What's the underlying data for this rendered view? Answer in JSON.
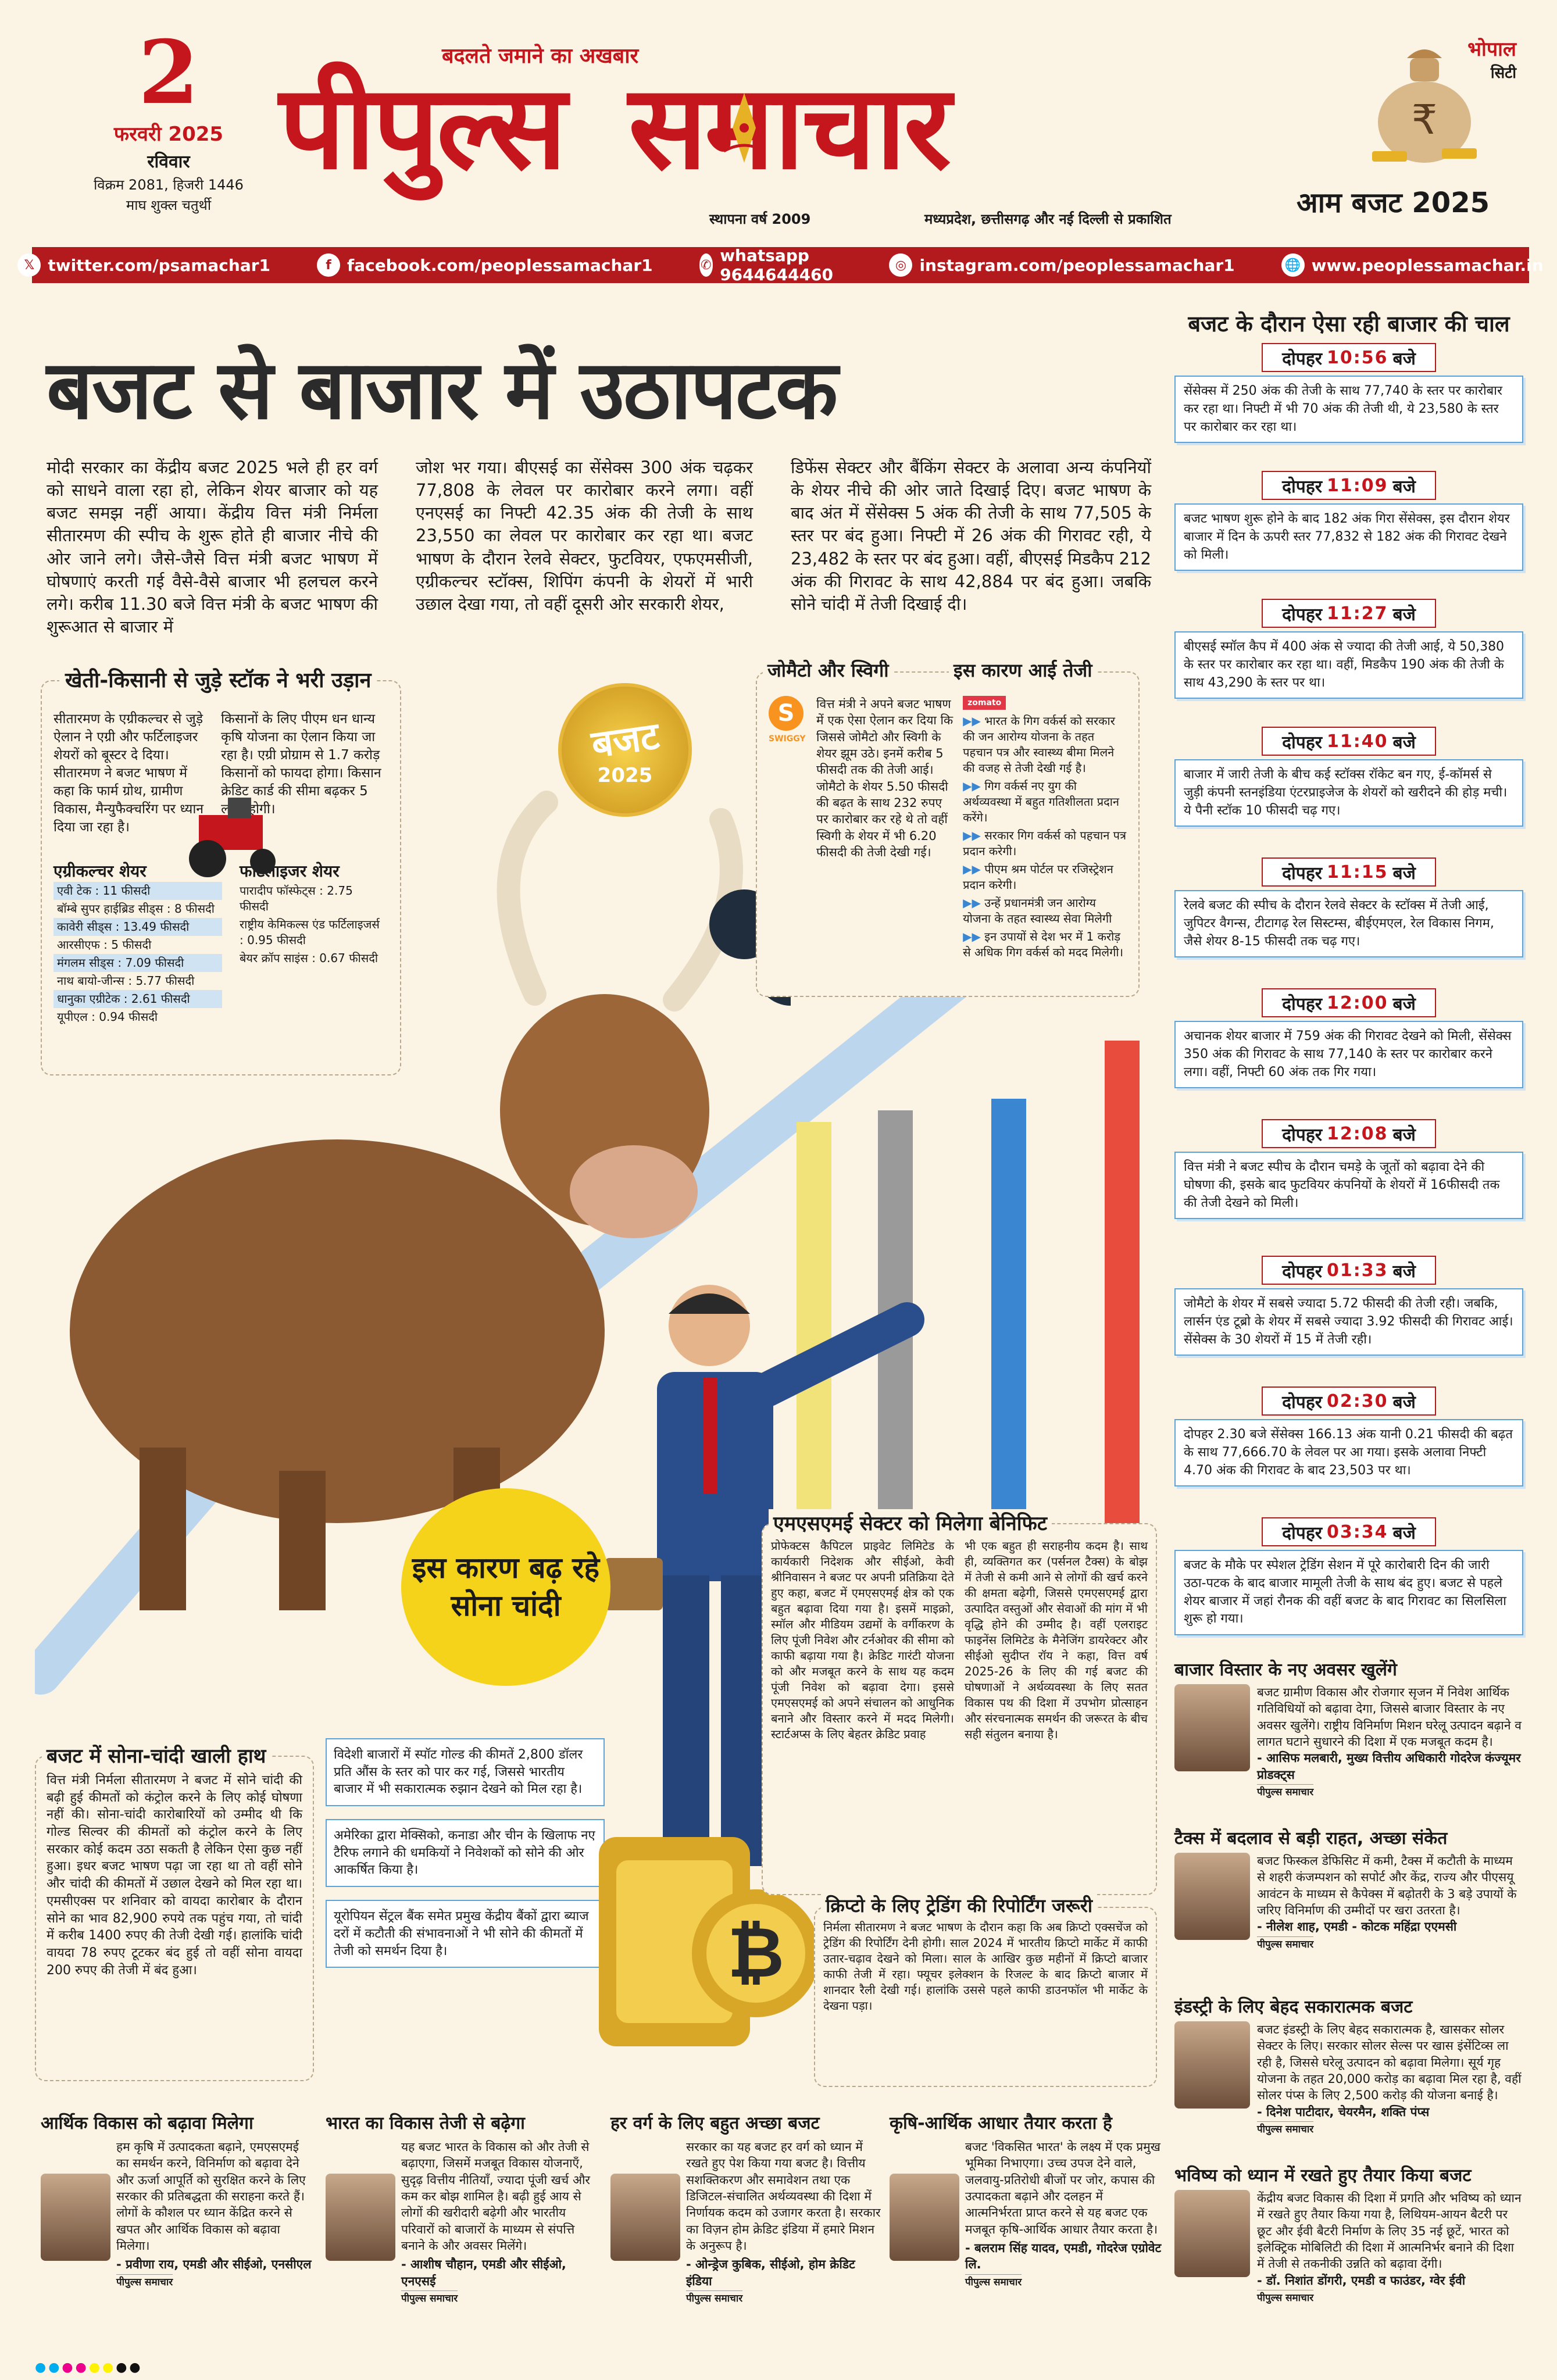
{
  "masthead": {
    "day": "2",
    "date_line": "फरवरी 2025",
    "weekday": "रविवार",
    "samvat": "विक्रम 2081, हिजरी 1446",
    "tithi": "माघ शुक्ल चतुर्थी",
    "tagline": "बदलते जमाने का अखबार",
    "logo_left": "पीपुल्स",
    "logo_right": "समाचार",
    "established": "स्थापना वर्ष 2009",
    "published": "मध्यप्रदेश, छत्तीसगढ़ और नई दिल्ली से प्रकाशित",
    "city": "भोपाल",
    "city_sub": "सिटी",
    "section": "आम बजट 2025"
  },
  "social": {
    "twitter": "twitter.com/psamachar1",
    "facebook": "facebook.com/peoplessamachar1",
    "whatsapp": "whatsapp 9644644460",
    "instagram": "instagram.com/peoplessamachar1",
    "web": "www.peoplessamachar.in"
  },
  "headline": "बजट से बाजार में उठापटक",
  "lead": {
    "c1": "मोदी सरकार का केंद्रीय बजट 2025 भले ही हर वर्ग को साधने वाला रहा हो, लेकिन शेयर बाजार को यह बजट समझ नहीं आया। केंद्रीय वित्त मंत्री निर्मला सीतारमण की स्पीच के शुरू होते ही बाजार नीचे की ओर जाने लगे। जैसे-जैसे वित्त मंत्री बजट भाषण में घोषणाएं करती गई वैसे-वैसे बाजार भी हलचल करने लगे। करीब 11.30 बजे वित्त मंत्री के बजट भाषण की शुरूआत से बाजार में",
    "c2": "जोश भर गया। बीएसई का सेंसेक्स 300 अंक चढ़कर 77,808 के लेवल पर कारोबार करने लगा। वहीं एनएसई का निफ्टी 42.35 अंक की तेजी के साथ 23,550 का लेवल पर कारोबार कर रहा था। बजट भाषण के दौरान रेलवे सेक्टर, फुटवियर, एफएमसीजी, एग्रीकल्चर स्टॉक्स, शिपिंग कंपनी के शेयरों में भारी उछाल देखा गया, तो वहीं दूसरी ओर सरकारी शेयर,",
    "c3": "डिफेंस सेक्टर और बैंकिंग सेक्टर के अलावा अन्य कंपनियों के शेयर नीचे की ओर जाते दिखाई दिए। बजट भाषण के बाद अंत में सेंसेक्स 5 अंक की तेजी के साथ 77,505 के स्तर पर बंद हुआ। निफ्टी में 26 अंक की गिरावट रही, ये 23,482 के स्तर पर बंद हुआ। वहीं, बीएसई मिडकैप 212 अंक की गिरावट के साथ 42,884 पर बंद हुआ। जबकि सोने चांदी में तेजी दिखाई दी।"
  },
  "agri": {
    "title": "खेती-किसानी से जुड़े स्टॉक ने भरी उड़ान",
    "p1": "सीतारमण के एग्रीकल्चर से जुड़े ऐलान ने एग्री और फर्टिलाइजर शेयरों को बूस्टर दे दिया। सीतारमण ने बजट भाषण में कहा कि फार्म ग्रोथ, ग्रामीण विकास, मैन्युफैक्चरिंग पर ध्यान दिया जा रहा है।",
    "p2": "किसानों के लिए पीएम धन धान्य कृषि योजना का ऐलान किया जा रहा है। एग्री प्रोग्राम से 1.7 करोड़ किसानों को फायदा होगा। किसान क्रेडिट कार्ड की सीमा बढ़कर 5 लाख होगी।",
    "h_agri": "एग्रीकल्चर शेयर",
    "agri_list": [
      "एवी टेक : 11 फीसदी",
      "बॉम्बे सुपर हाईब्रिड सीड्स : 8 फीसदी",
      "कावेरी सीड्स : 13.49 फीसदी",
      "आरसीएफ : 5 फीसदी",
      "मंगलम सीड्स : 7.09 फीसदी",
      "नाथ बायो-जीन्स : 5.77 फीसदी",
      "धानुका एग्रीटेक : 2.61 फीसदी",
      "यूपीएल : 0.94 फीसदी"
    ],
    "h_fert": "फर्टिलाइजर शेयर",
    "fert_list": [
      "पारादीप फॉस्फेट्स : 2.75 फीसदी",
      "राष्ट्रीय केमिकल्स एंड फर्टिलाइजर्स : 0.95 फीसदी",
      "बेयर क्रॉप साइंस : 0.67 फीसदी"
    ]
  },
  "stamp": {
    "top": "बजट",
    "bottom": "2025"
  },
  "zomato": {
    "title": "जोमैटो और स्विगी",
    "body": "वित्त मंत्री ने अपने बजट भाषण में एक ऐसा ऐलान कर दिया कि जिससे जोमैटो और स्विगी के शेयर झूम उठे। इनमें करीब 5 फीसदी तक की तेजी आई। जोमैटो के शेयर 5.50 फीसदी की बढ़त के साथ 232 रुपए पर कारोबार कर रहे थे तो वहीं स्विगी के शेयर में भी 6.20 फीसदी की तेजी देखी गई।",
    "swiggy": "SWIGGY",
    "zomato_logo": "zomato"
  },
  "reason": {
    "title": "इस कारण आई तेजी",
    "items": [
      "भारत के गिग वर्कर्स को सरकार की जन आरोग्य योजना के तहत पहचान पत्र और स्वास्थ्य बीमा मिलने की वजह से तेजी देखी गई है।",
      "गिग वर्कर्स नए युग की अर्थव्यवस्था में बहुत गतिशीलता प्रदान करेंगे।",
      "सरकार गिग वर्कर्स को पहचान पत्र प्रदान करेगी।",
      "पीएम श्रम पोर्टल पर रजिस्ट्रेशन प्रदान करेगी।",
      "उन्हें प्रधानमंत्री जन आरोग्य योजना के तहत स्वास्थ्य सेवा मिलेगी",
      "इन उपायों से देश भर में 1 करोड़ से अधिक गिग वर्कर्स को मदद मिलेगी।"
    ]
  },
  "gold_bubble": "इस कारण बढ़ रहे सोना चांदी",
  "gold": {
    "title": "बजट में सोना-चांदी खाली हाथ",
    "body": "वित्त मंत्री निर्मला सीतारमण ने बजट में सोने चांदी की बढ़ी हुई कीमतों को कंट्रोल करने के लिए कोई घोषणा नहीं की। सोना-चांदी कारोबारियों को उम्मीद थी कि गोल्ड सिल्वर की कीमतों को कंट्रोल करने के लिए सरकार कोई कदम उठा सकती है लेकिन ऐसा कुछ नहीं हुआ। इधर बजट भाषण पढ़ा जा रहा था तो वहीं सोने और चांदी की कीमतों में उछाल देखने को मिल रहा था। एमसीएक्स पर शनिवार को वायदा कारोबार के दौरान सोने का भाव 82,900 रुपये तक पहुंच गया, तो चांदी में करीब 1400 रुपए की तेजी देखी गई। हालांकि चांदी वायदा 78 रुपए टूटकर बंद हुई तो वहीं सोना वायदा 200 रुपए की तेजी में बंद हुआ।",
    "notes": [
      "विदेशी बाजारों में स्पॉट गोल्ड की कीमतें 2,800 डॉलर प्रति औंस के स्तर को पार कर गई, जिससे भारतीय बाजार में भी सकारात्मक रुझान देखने को मिल रहा है।",
      "अमेरिका द्वारा मेक्सिको, कनाडा और चीन के खिलाफ नए टैरिफ लगाने की धमकियों ने निवेशकों को सोने की ओर आकर्षित किया है।",
      "यूरोपियन सेंट्रल बैंक समेत प्रमुख केंद्रीय बैंकों द्वारा ब्याज दरों में कटौती की संभावनाओं ने भी सोने की कीमतों में तेजी को समर्थन दिया है।"
    ]
  },
  "msme": {
    "title": "एमएसएमई सेक्टर को मिलेगा बेनिफिट",
    "c1": "प्रोफेक्टस कैपिटल प्राइवेट लिमिटेड के कार्यकारी निदेशक और सीईओ, केवी श्रीनिवासन ने बजट पर अपनी प्रतिक्रिया देते हुए कहा, बजट में एमएसएमई क्षेत्र को एक बहुत बढ़ावा दिया गया है। इसमें माइक्रो, स्मॉल और मीडियम उद्यमों के वर्गीकरण के लिए पूंजी निवेश और टर्नओवर की सीमा को काफी बढ़ाया गया है। क्रेडिट गारंटी योजना को और मजबूत करने के साथ यह कदम पूंजी निवेश को बढ़ावा देगा। इससे एमएसएमई को अपने संचालन को आधुनिक बनाने और विस्तार करने में मदद मिलेगी। स्टार्टअप्स के लिए बेहतर क्रेडिट प्रवाह",
    "c2": "भी एक बहुत ही सराहनीय कदम है। साथ ही, व्यक्तिगत कर (पर्सनल टैक्स) के बोझ में तेजी से कमी आने से लोगों की खर्च करने की क्षमता बढ़ेगी, जिससे एमएसएमई द्वारा उत्पादित वस्तुओं और सेवाओं की मांग में भी वृद्धि होने की उम्मीद है। वहीं एलराइट फाइनेंस लिमिटेड के मैनेजिंग डायरेक्टर और सीईओ सुदीप्त रॉय ने कहा, वित्त वर्ष 2025-26 के लिए की गई बजट की घोषणाओं ने अर्थव्यवस्था के लिए सतत विकास पथ की दिशा में उपभोग प्रोत्साहन और संरचनात्मक समर्थन की जरूरत के बीच सही संतुलन बनाया है।"
  },
  "crypto": {
    "title": "क्रिप्टो के लिए ट्रेडिंग की रिपोर्टिंग जरूरी",
    "body": "निर्मला सीतारमण ने बजट भाषण के दौरान कहा कि अब क्रिप्टो एक्सचेंज को ट्रेडिंग की रिपोर्टिंग देनी होगी। साल 2024 में भारतीय क्रिप्टो मार्केट में काफी उतार-चढ़ाव देखने को मिला। साल के आखिर कुछ महीनों में क्रिप्टो बाजार काफी तेजी में रहा। फ्यूचर इलेक्शन के रिजल्ट के बाद क्रिप्टो बाजार में शानदार रैली देखी गई। हालांकि उससे पहले काफी डाउनफॉल भी मार्केट के देखना पड़ा।"
  },
  "sidebar": {
    "head": "बजट के दौरान ऐसा रही बाजार की चाल",
    "pre": "दोपहर",
    "post": "बजे",
    "times": [
      {
        "t": "10:56",
        "body": "सेंसेक्स में 250 अंक की तेजी के साथ 77,740 के स्तर पर कारोबार कर रहा था। निफ्टी में भी 70 अंक की तेजी थी, ये 23,580 के स्तर पर कारोबार कर रहा था।"
      },
      {
        "t": "11:09",
        "body": "बजट भाषण शुरू होने के बाद 182 अंक गिरा सेंसेक्स, इस दौरान शेयर बाजार में दिन के ऊपरी स्तर 77,832 से 182 अंक की गिरावट देखने को मिली।"
      },
      {
        "t": "11:27",
        "body": "बीएसई स्मॉल कैप में 400 अंक से ज्यादा की तेजी आई, ये 50,380 के स्तर पर कारोबार कर रहा था। वहीं, मिडकैप 190 अंक की तेजी के साथ 43,290 के स्तर पर था।"
      },
      {
        "t": "11:40",
        "body": "बाजार में जारी तेजी के बीच कई स्टॉक्स रॉकेट बन गए, ई-कॉमर्स से जुड़ी कंपनी स्तनइंडिया एंटरप्राइजेज के शेयरों को खरीदने की होड़ मची। ये पैनी स्टॉक 10 फीसदी चढ़ गए।"
      },
      {
        "t": "11:15",
        "body": "रेलवे बजट की स्पीच के दौरान रेलवे सेक्टर के स्टॉक्स में तेजी आई, जुपिटर वैगन्स, टीटागढ़ रेल सिस्टम्स, बीईएमएल, रेल विकास निगम, जैसे शेयर 8-15 फीसदी तक चढ़ गए।"
      },
      {
        "t": "12:00",
        "body": "अचानक शेयर बाजार में 759 अंक की गिरावट देखने को मिली, सेंसेक्स 350 अंक की गिरावट के साथ 77,140 के स्तर पर कारोबार करने लगा। वहीं, निफ्टी 60 अंक तक गिर गया।"
      },
      {
        "t": "12:08",
        "body": "वित्त मंत्री ने बजट स्पीच के दौरान चमड़े के जूतों को बढ़ावा देने की घोषणा की, इसके बाद फुटवियर कंपनियों के शेयरों में 16फीसदी तक की तेजी देखने को मिली।"
      },
      {
        "t": "01:33",
        "body": "जोमैटो के शेयर में सबसे ज्यादा 5.72 फीसदी की तेजी रही। जबकि, लार्सन एंड टूब्रो के शेयर में सबसे ज्यादा 3.92 फीसदी की गिरावट आई। सेंसेक्स के 30 शेयरों में 15 में तेजी रही।"
      },
      {
        "t": "02:30",
        "body": "दोपहर 2.30 बजे सेंसेक्स 166.13 अंक यानी 0.21 फीसदी की बढ़त के साथ 77,666.70 के लेवल पर आ गया। इसके अलावा निफ्टी 4.70 अंक की गिरावट के बाद 23,503 पर था।"
      },
      {
        "t": "03:34",
        "body": "बजट के मौके पर स्पेशल ट्रेडिंग सेशन में पूरे कारोबारी दिन की जारी उठा-पटक के बाद बाजार मामूली तेजी के साथ बंद हुए। बजट से पहले शेयर बाजार में जहां रौनक की वहीं बजट के बाद गिरावट का सिलसिला शुरू हो गया।"
      }
    ]
  },
  "op_right": [
    {
      "title": "बाजार विस्तार के नए अवसर खुलेंगे",
      "body": "बजट ग्रामीण विकास और रोजगार सृजन में निवेश आर्थिक गतिविधियों को बढ़ावा देगा, जिससे बाजार विस्तार के नए अवसर खुलेंगे। राष्ट्रीय विनिर्माण मिशन घरेलू उत्पादन बढ़ाने व लागत घटाने सुधारने की दिशा में एक मजबूत कदम है।",
      "who": "- आसिफ मलबारी, मुख्य वित्तीय अधिकारी गोदरेज कंज्यूमर प्रोडक्ट्स"
    },
    {
      "title": "टैक्स में बदलाव से बड़ी राहत, अच्छा संकेत",
      "body": "बजट फिस्कल डेफिसिट में कमी, टैक्स में कटौती के माध्यम से शहरी कंजम्पशन को सपोर्ट और केंद्र, राज्य और पीएसयू आवंटन के माध्यम से कैपेक्स में बढ़ोतरी के 3 बड़े उपायों के जरिए विनिर्माण की उम्मीदों पर खरा उतरता है।",
      "who": "- नीलेश शाह, एमडी - कोटक महिंद्रा एएमसी"
    },
    {
      "title": "इंडस्ट्री के लिए बेहद सकारात्मक बजट",
      "body": "बजट इंडस्ट्री के लिए बेहद सकारात्मक है, खासकर सोलर सेक्टर के लिए। सरकार सोलर सेल्स पर खास इंसेंटिव्स ला रही है, जिससे घरेलू उत्पादन को बढ़ावा मिलेगा। सूर्य गृह योजना के तहत 20,000 करोड़ का बढ़ावा मिल रहा है, वहीं सोलर पंप्स के लिए 2,500 करोड़ की योजना बनाई है।",
      "who": "- दिनेश पाटीदार, चेयरमैन, शक्ति पंप्स"
    },
    {
      "title": "भविष्य को ध्यान में रखते हुए तैयार किया बजट",
      "body": "केंद्रीय बजट विकास की दिशा में प्रगति और भविष्य को ध्यान में रखते हुए तैयार किया गया है, लिथियम-आयन बैटरी पर छूट और ईवी बैटरी निर्माण के लिए 35 नई छूटें, भारत को इलेक्ट्रिक मोबिलिटी की दिशा में आत्मनिर्भर बनाने की दिशा में तेजी से तकनीकी उन्नति को बढ़ावा देंगी।",
      "who": "- डॉ. निशांत डोंगरी, एमडी व फाउंडर, ग्वेर ईवी"
    }
  ],
  "op_bottom": [
    {
      "title": "आर्थिक विकास को बढ़ावा मिलेगा",
      "body": "हम कृषि में उत्पादकता बढ़ाने, एमएसएमई का समर्थन करने, विनिर्माण को बढ़ावा देने और ऊर्जा आपूर्ति को सुरक्षित करने के लिए सरकार की प्रतिबद्धता की सराहना करते हैं। लोगों के कौशल पर ध्यान केंद्रित करने से खपत और आर्थिक विकास को बढ़ावा मिलेगा।",
      "who": "- प्रवीणा राय, एमडी और सीईओ, एनसीएल"
    },
    {
      "title": "भारत का विकास तेजी से बढ़ेगा",
      "body": "यह बजट भारत के विकास को और तेजी से बढ़ाएगा, जिसमें मजबूत विकास योजनाएँ, सुदृढ़ वित्तीय नीतियाँ, ज्यादा पूंजी खर्च और कम कर बोझ शामिल है। बढ़ी हुई आय से लोगों की खरीदारी बढ़ेगी और भारतीय परिवारों को बाजारों के माध्यम से संपत्ति बनाने के और अवसर मिलेंगे।",
      "who": "- आशीष चौहान, एमडी और सीईओ, एनएसई"
    },
    {
      "title": "हर वर्ग के लिए बहुत अच्छा बजट",
      "body": "सरकार का यह बजट हर वर्ग को ध्यान में रखते हुए पेश किया गया बजट है। वित्तीय सशक्तिकरण और समावेशन तथा एक डिजिटल-संचालित अर्थव्यवस्था की दिशा में निर्णायक कदम को उजागर करता है। सरकार का विज़न होम क्रेडिट इंडिया में हमारे मिशन के अनुरूप है।",
      "who": "- ओन्ड्रेज कुबिक, सीईओ, होम क्रेडिट इंडिया"
    },
    {
      "title": "कृषि-आर्थिक आधार तैयार करता है",
      "body": "बजट 'विकसित भारत' के लक्ष्य में एक प्रमुख भूमिका निभाएगा। उच्च उपज देने वाले, जलवायु-प्रतिरोधी बीजों पर जोर, कपास की उत्पादकता बढ़ाने और दलहन में आत्मनिर्भरता प्राप्त करने से यह बजट एक मजबूत कृषि-आर्थिक आधार तैयार करता है।",
      "who": "- बलराम सिंह यादव, एमडी, गोदरेज एग्रोवेट लि."
    }
  ],
  "credit": "पीपुल्स समाचार",
  "colors": {
    "brand_red": "#c4161c",
    "accent_blue": "#5ba3d8",
    "gold": "#f5d31a"
  }
}
